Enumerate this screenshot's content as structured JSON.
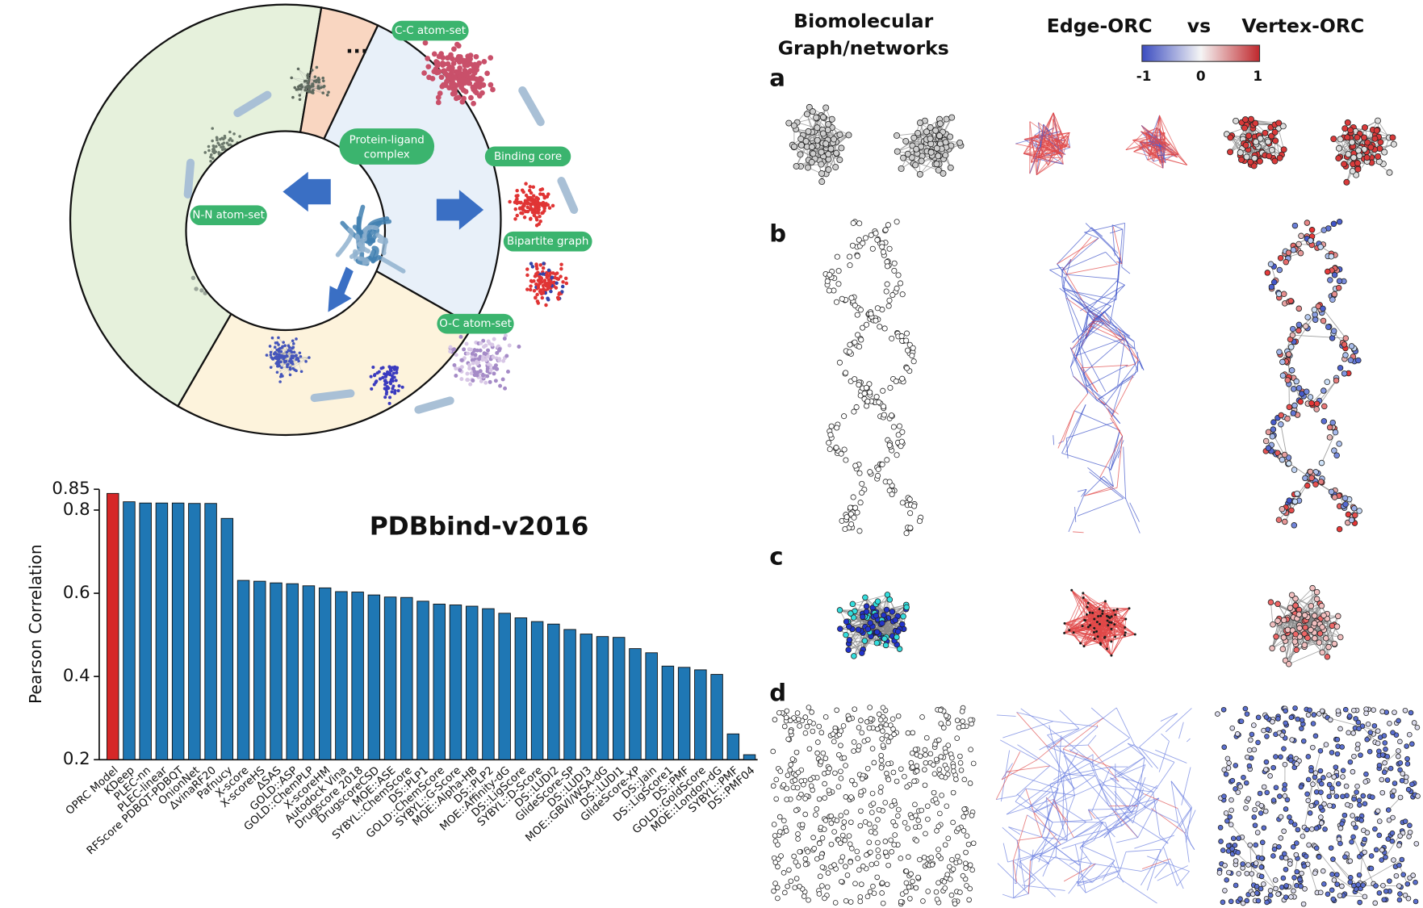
{
  "chart_data": {
    "type": "bar",
    "title": "PDBbind-v2016",
    "ylabel": "Pearson Correlation",
    "categories": [
      "OPRC Model",
      "KDeep",
      "PLEC-nn",
      "PLEC-linear",
      "RFScore PDBQT-PDBQT",
      "OnionNet",
      "ΔvinaRF20",
      "Pafnucy",
      "X-score",
      "X-scoreHS",
      "ΔSAS",
      "GOLD::ASP",
      "GOLD::ChemPLP",
      "X-scoreHM",
      "Autodock Vina",
      "Drugscore 2018",
      "DrugscoreCSD",
      "MOE::ASE",
      "SYBYL::ChemScore",
      "DS::PLP1",
      "GOLD::ChemScore",
      "SYBYL::G-Score",
      "MOE::Alpha-HB",
      "DS::PLP2",
      "MOE::Affinity-dG",
      "DS::LigScore",
      "SYBYL::D-Score",
      "DS::LUDI2",
      "GlideScore-SP",
      "DS::LUDI3",
      "MOE::GBVI/WSA-dG",
      "DS::LUDI1",
      "GlideScore-XP",
      "DS::Jain",
      "DS::LigScore1",
      "DS::PMF",
      "GOLD::GoldScore",
      "MOE::London-dG",
      "SYBYL::PMF",
      "DS::PMF04"
    ],
    "values": [
      0.84,
      0.82,
      0.817,
      0.817,
      0.817,
      0.816,
      0.816,
      0.78,
      0.631,
      0.629,
      0.625,
      0.623,
      0.618,
      0.613,
      0.604,
      0.603,
      0.596,
      0.591,
      0.59,
      0.581,
      0.574,
      0.572,
      0.569,
      0.563,
      0.552,
      0.541,
      0.532,
      0.526,
      0.513,
      0.502,
      0.496,
      0.494,
      0.467,
      0.457,
      0.425,
      0.422,
      0.416,
      0.405,
      0.262,
      0.212
    ],
    "colors": [
      "#d62728",
      "#1f77b4",
      "#1f77b4",
      "#1f77b4",
      "#1f77b4",
      "#1f77b4",
      "#1f77b4",
      "#1f77b4",
      "#1f77b4",
      "#1f77b4",
      "#1f77b4",
      "#1f77b4",
      "#1f77b4",
      "#1f77b4",
      "#1f77b4",
      "#1f77b4",
      "#1f77b4",
      "#1f77b4",
      "#1f77b4",
      "#1f77b4",
      "#1f77b4",
      "#1f77b4",
      "#1f77b4",
      "#1f77b4",
      "#1f77b4",
      "#1f77b4",
      "#1f77b4",
      "#1f77b4",
      "#1f77b4",
      "#1f77b4",
      "#1f77b4",
      "#1f77b4",
      "#1f77b4",
      "#1f77b4",
      "#1f77b4",
      "#1f77b4",
      "#1f77b4",
      "#1f77b4",
      "#1f77b4",
      "#1f77b4"
    ],
    "ylim": [
      0.2,
      0.85
    ],
    "yticks": [
      0.2,
      0.4,
      0.6,
      0.8,
      0.85
    ]
  },
  "diagram": {
    "center": "Protein-ligand complex",
    "labels": [
      "C-C atom-set",
      "Binding core",
      "Bipartite graph",
      "O-C atom-set",
      "N-N atom-set"
    ],
    "more": "..."
  },
  "panels": {
    "headers": [
      "Biomolecular Graph/networks",
      "Edge-ORC",
      "vs",
      "Vertex-ORC"
    ],
    "letters": [
      "a",
      "b",
      "c",
      "d"
    ],
    "colorbar_ticks": [
      -1,
      0,
      1
    ]
  }
}
